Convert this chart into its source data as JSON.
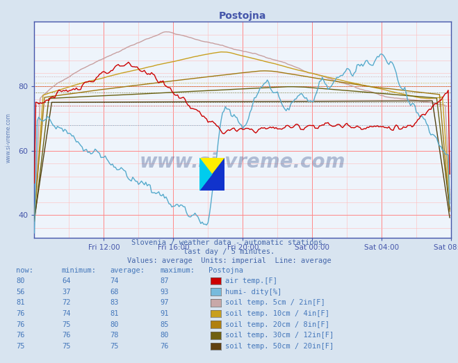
{
  "title": "Postojna",
  "subtitle1": "Slovenia / weather data - automatic stations.",
  "subtitle2": "last day / 5 minutes.",
  "subtitle3": "Values: average  Units: imperial  Line: average",
  "bg_color": "#d8e4f0",
  "plot_bg_color": "#eef4fb",
  "x_labels": [
    "Fri 12:00",
    "Fri 16:00",
    "Fri 20:00",
    "Sat 00:00",
    "Sat 04:00",
    "Sat 08:00"
  ],
  "y_ticks": [
    40,
    60,
    80
  ],
  "ylim": [
    33,
    100
  ],
  "xlim": [
    0,
    288
  ],
  "watermark": "www.si-vreme.com",
  "avg_lines": [
    74,
    68,
    83,
    81,
    80,
    78,
    75
  ],
  "series_colors": [
    "#cc0000",
    "#55aacc",
    "#c8a0a0",
    "#c8a020",
    "#a07810",
    "#686010",
    "#504010"
  ],
  "legend_rows": [
    {
      "now": "80",
      "min": "64",
      "avg": "74",
      "max": "87",
      "label": "air temp.[F]"
    },
    {
      "now": "56",
      "min": "37",
      "avg": "68",
      "max": "93",
      "label": "humi- dity[%]"
    },
    {
      "now": "81",
      "min": "72",
      "avg": "83",
      "max": "97",
      "label": "soil temp. 5cm / 2in[F]"
    },
    {
      "now": "76",
      "min": "74",
      "avg": "81",
      "max": "91",
      "label": "soil temp. 10cm / 4in[F]"
    },
    {
      "now": "76",
      "min": "75",
      "avg": "80",
      "max": "85",
      "label": "soil temp. 20cm / 8in[F]"
    },
    {
      "now": "76",
      "min": "76",
      "avg": "78",
      "max": "80",
      "label": "soil temp. 30cm / 12in[F]"
    },
    {
      "now": "75",
      "min": "75",
      "avg": "75",
      "max": "76",
      "label": "soil temp. 50cm / 20in[F]"
    }
  ],
  "swatch_colors": [
    "#cc0000",
    "#77bbdd",
    "#c8a8a8",
    "#c8a020",
    "#b08010",
    "#706010",
    "#604010"
  ]
}
